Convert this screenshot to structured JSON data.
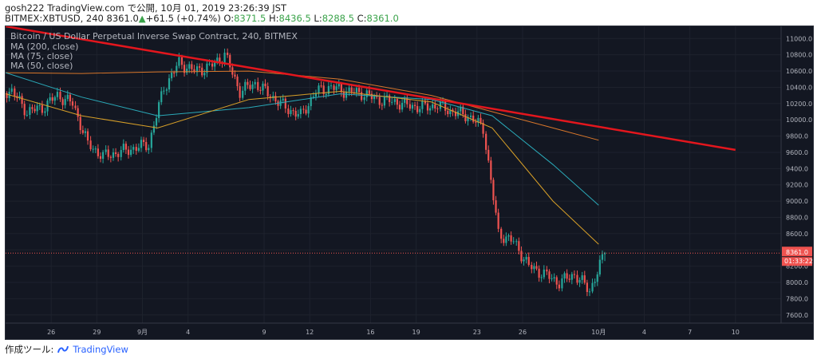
{
  "header": {
    "line1": "gosh222 TradingView.com で公開, 10月 01, 2019 23:26:39 JST",
    "symbol": "BITMEX:XBTUSD, 240 8361.0",
    "change": "+61.5 (+0.74%)",
    "o_label": "O:",
    "o_val": "8371.5",
    "h_label": "H:",
    "h_val": "8436.5",
    "l_label": "L:",
    "l_val": "8288.5",
    "c_label": "C:",
    "c_val": "8361.0"
  },
  "footer": {
    "label": "作成ツール:",
    "brand": "TradingView"
  },
  "colors": {
    "bg": "#131722",
    "up": "#26a69a",
    "down": "#ef5350",
    "trend": "#e3161d",
    "ma200": "#d9772b",
    "ma75": "#2aa9b8",
    "ma50": "#d8a028"
  },
  "chart_data": {
    "type": "line",
    "title": "Bitcoin / US Dollar Perpetual Inverse Swap Contract, 240, BITMEX",
    "legend": [
      "MA (200, close)",
      "MA (75, close)",
      "MA (50, close)"
    ],
    "ylim": [
      7500,
      11150
    ],
    "yticks": [
      7600,
      7800,
      8000,
      8200,
      8400,
      8600,
      8800,
      9000,
      9200,
      9400,
      9600,
      9800,
      10000,
      10200,
      10400,
      10600,
      10800,
      11000
    ],
    "xticks": [
      "26",
      "29",
      "9月",
      "4",
      "9",
      "12",
      "16",
      "19",
      "23",
      "26",
      "10月",
      "4",
      "7",
      "10"
    ],
    "last_price": "8361.0",
    "countdown": "01:33:22",
    "series": [
      {
        "name": "Price (close, approx.)",
        "x": [
          "08-23",
          "08-24",
          "08-25",
          "08-26",
          "08-27",
          "08-28",
          "08-29",
          "08-30",
          "08-31",
          "09-01",
          "09-02",
          "09-03",
          "09-04",
          "09-05",
          "09-06",
          "09-07",
          "09-08",
          "09-09",
          "09-10",
          "09-11",
          "09-12",
          "09-13",
          "09-14",
          "09-15",
          "09-16",
          "09-17",
          "09-18",
          "09-19",
          "09-20",
          "09-21",
          "09-22",
          "09-23",
          "09-24",
          "09-25",
          "09-26",
          "09-27",
          "09-28",
          "09-29",
          "09-30",
          "10-01"
        ],
        "values": [
          10350,
          10100,
          10150,
          10300,
          10200,
          9700,
          9550,
          9600,
          9650,
          9700,
          10400,
          10700,
          10600,
          10650,
          10800,
          10350,
          10450,
          10300,
          10150,
          10050,
          10350,
          10400,
          10350,
          10330,
          10250,
          10230,
          10180,
          10150,
          10180,
          10100,
          10050,
          9900,
          8600,
          8500,
          8200,
          8100,
          8000,
          8100,
          7900,
          8361
        ]
      },
      {
        "name": "MA (200, close)",
        "x": [
          "08-23",
          "08-28",
          "09-02",
          "09-08",
          "09-14",
          "09-20",
          "09-24",
          "09-28",
          "10-01"
        ],
        "values": [
          10580,
          10570,
          10590,
          10600,
          10500,
          10300,
          10100,
          9900,
          9750
        ]
      },
      {
        "name": "MA (75, close)",
        "x": [
          "08-23",
          "08-28",
          "09-02",
          "09-08",
          "09-14",
          "09-20",
          "09-24",
          "09-28",
          "10-01"
        ],
        "values": [
          10580,
          10280,
          10050,
          10150,
          10320,
          10250,
          10050,
          9450,
          8950
        ]
      },
      {
        "name": "MA (50, close)",
        "x": [
          "08-23",
          "08-28",
          "09-02",
          "09-08",
          "09-14",
          "09-20",
          "09-24",
          "09-28",
          "10-01"
        ],
        "values": [
          10320,
          10050,
          9900,
          10250,
          10350,
          10220,
          9900,
          9000,
          8470
        ]
      },
      {
        "name": "Trendline",
        "x": [
          "08-23",
          "10-10"
        ],
        "values": [
          11150,
          9630
        ]
      }
    ]
  }
}
